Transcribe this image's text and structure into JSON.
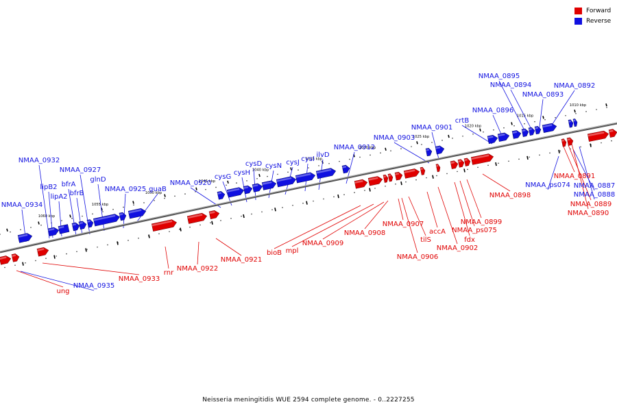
{
  "colors": {
    "forward": "#e00000",
    "reverse": "#1010e0",
    "backbone": "#8a8a8a"
  },
  "legend": [
    {
      "label": "Forward",
      "strand": "forward"
    },
    {
      "label": "Reverse",
      "strand": "reverse"
    }
  ],
  "caption": "Neisseria meningitidis WUE 2594 complete genome. - 0..2227255",
  "ticks": [
    "1060 kbp",
    "1055 kbp",
    "1050 kbp",
    "1045 kbp",
    "1040 kbp",
    "1035 kbp",
    "1030 kbp",
    "1025 kbp",
    "1020 kbp",
    "1015 kbp",
    "1010 kbp"
  ],
  "genes": {
    "reverse": [
      "NMAA_0934",
      "NMAA_0932",
      "lipB2",
      "lipA2",
      "bfrA",
      "bfrB",
      "NMAA_0927",
      "glnD",
      "NMAA_0925",
      "guaB",
      "NMAA_0920",
      "cysG",
      "cysH",
      "cysD",
      "cysN",
      "cysJ",
      "cysI",
      "ilvD",
      "NMAA_0912",
      "NMAA_0903",
      "NMAA_0901",
      "crtB",
      "NMAA_0896",
      "NMAA_0895",
      "NMAA_0894",
      "NMAA_0893",
      "NMAA_0892",
      "NMAA_0935",
      "NMAA_ps074",
      "NMAA_0887",
      "NMAA_0888"
    ],
    "forward": [
      "ung",
      "NMAA_0933",
      "rnr",
      "NMAA_0922",
      "NMAA_0921",
      "bioB",
      "mpl",
      "NMAA_0909",
      "NMAA_0908",
      "NMAA_0907",
      "tilS",
      "NMAA_0906",
      "accA",
      "NMAA_0902",
      "fdx",
      "NMAA_ps075",
      "NMAA_0899",
      "NMAA_0898",
      "NMAA_0891",
      "NMAA_0889",
      "NMAA_0890"
    ]
  }
}
